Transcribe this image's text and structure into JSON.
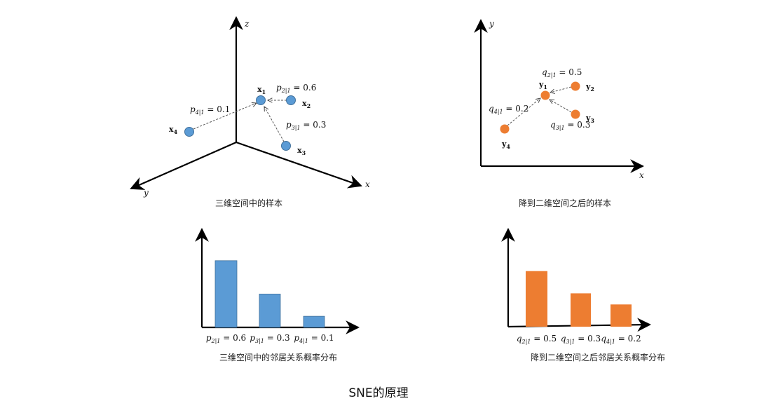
{
  "colors": {
    "blue": "#5b9bd5",
    "orange": "#ed7d31",
    "axis": "#000000",
    "dash": "#555555"
  },
  "title": "SNE的原理",
  "panel_3d": {
    "caption": "三维空间中的样本",
    "axes": {
      "z": "z",
      "y": "y",
      "x": "x"
    },
    "points": [
      {
        "base": "x",
        "sub": "1"
      },
      {
        "base": "x",
        "sub": "2"
      },
      {
        "base": "x",
        "sub": "3"
      },
      {
        "base": "x",
        "sub": "4"
      }
    ],
    "probs": [
      {
        "sym": "p",
        "sub": "2|1",
        "rest": " = 0.6"
      },
      {
        "sym": "p",
        "sub": "3|1",
        "rest": " = 0.3"
      },
      {
        "sym": "p",
        "sub": "4|1",
        "rest": " = 0.1"
      }
    ]
  },
  "panel_2d": {
    "caption": "降到二维空间之后的样本",
    "axes": {
      "y": "y",
      "x": "x"
    },
    "points": [
      {
        "base": "y",
        "sub": "1"
      },
      {
        "base": "y",
        "sub": "2"
      },
      {
        "base": "y",
        "sub": "3"
      },
      {
        "base": "y",
        "sub": "4"
      }
    ],
    "probs": [
      {
        "sym": "q",
        "sub": "2|1",
        "rest": " = 0.5"
      },
      {
        "sym": "q",
        "sub": "3|1",
        "rest": " = 0.3"
      },
      {
        "sym": "q",
        "sub": "4|1",
        "rest": " = 0.2"
      }
    ]
  },
  "chart_data": [
    {
      "type": "bar",
      "title": "三维空间中的邻居关系概率分布",
      "categories": [
        "p2|1 = 0.6",
        "p3|1 = 0.3",
        "p4|1 = 0.1"
      ],
      "values": [
        0.6,
        0.3,
        0.1
      ],
      "ylim": [
        0,
        0.87
      ],
      "color": "#5b9bd5"
    },
    {
      "type": "bar",
      "title": "降到二维空间之后邻居关系概率分布",
      "categories": [
        "q2|1 = 0.5",
        "q3|1 = 0.3",
        "q4|1 = 0.2"
      ],
      "values": [
        0.5,
        0.3,
        0.2
      ],
      "ylim": [
        0,
        0.87
      ],
      "color": "#ed7d31"
    }
  ]
}
